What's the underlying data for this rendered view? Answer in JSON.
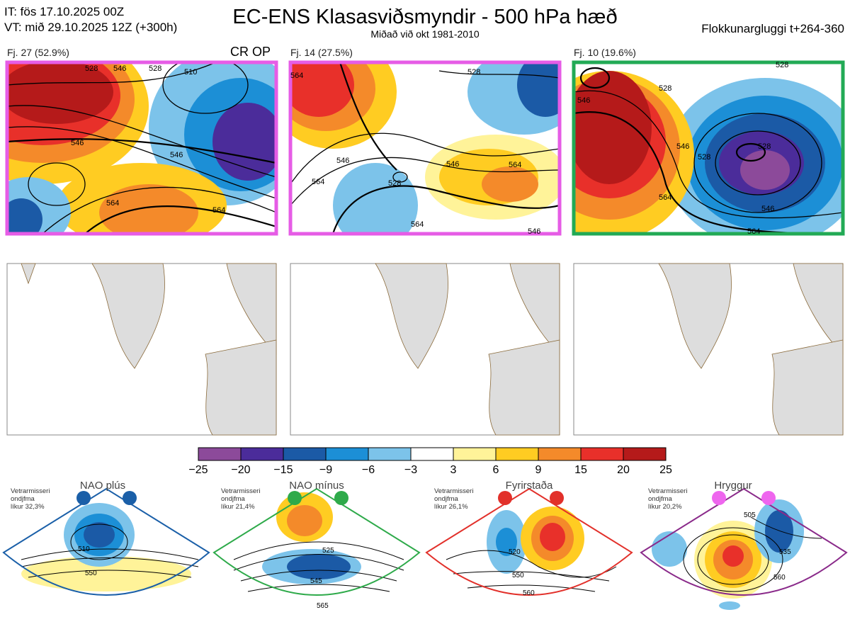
{
  "header": {
    "it": "IT: fös 17.10.2025 00Z",
    "vt": "VT: mið 29.10.2025 12Z  (+300h)",
    "title": "EC-ENS Klasasviðsmyndir - 500 hPa hæð",
    "subtitle": "Miðað við okt 1981-2010",
    "window": "Flokkunargluggi t+264-360"
  },
  "clusters": [
    {
      "label": "Fj. 27 (52.9%)",
      "border": "#e65ce6",
      "contours": [
        "510",
        "528",
        "546",
        "546",
        "564",
        "564",
        "528",
        "546"
      ]
    },
    {
      "label": "Fj. 14 (27.5%)",
      "border": "#e65ce6",
      "contours": [
        "528",
        "564",
        "528",
        "546",
        "564",
        "564",
        "546",
        "546",
        "564"
      ]
    },
    {
      "label": "Fj. 10 (19.6%)",
      "border": "#22aa55",
      "contours": [
        "528",
        "528",
        "546",
        "528",
        "528",
        "546",
        "546",
        "564",
        "564"
      ]
    }
  ],
  "crop_label": "CR OP",
  "colorbar": {
    "ticks": [
      "−25",
      "−20",
      "−15",
      "−9",
      "−6",
      "−3",
      "3",
      "6",
      "9",
      "15",
      "20",
      "25"
    ],
    "colors": [
      "#8c4a9a",
      "#4b2c9a",
      "#1b5aa6",
      "#1c8fd6",
      "#7cc3ea",
      "#ffffff",
      "#fff399",
      "#ffcc22",
      "#f48a2a",
      "#e8302a",
      "#b51a1a"
    ]
  },
  "regimes": [
    {
      "title": "NAO plús",
      "meta": [
        "Vetrarmisseri",
        "ondjfma",
        "líkur 32,3%"
      ],
      "border": "#1a5fa8",
      "dot": "#1a5fa8",
      "contours": [
        "510",
        "550"
      ]
    },
    {
      "title": "NAO mínus",
      "meta": [
        "Vetrarmisseri",
        "ondjfma",
        "líkur 21,4%"
      ],
      "border": "#2eaa4a",
      "dot": "#2eaa4a",
      "contours": [
        "525",
        "545",
        "565"
      ]
    },
    {
      "title": "Fyrirstaða",
      "meta": [
        "Vetrarmisseri",
        "ondjfma",
        "líkur 26,1%"
      ],
      "border": "#e2302a",
      "dot": "#e2302a",
      "contours": [
        "520",
        "550",
        "560"
      ]
    },
    {
      "title": "Hryggur",
      "meta": [
        "Vetrarmisseri",
        "ondjfma",
        "líkur 20,2%"
      ],
      "border": "#8a2a8a",
      "dot": "#ee66ee",
      "contours": [
        "505",
        "535",
        "560"
      ]
    }
  ]
}
